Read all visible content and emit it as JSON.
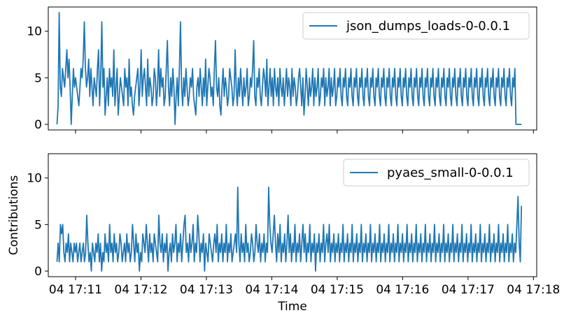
{
  "chart_data": [
    {
      "type": "line",
      "xlabel": "",
      "ylabel": "",
      "ylim": [
        -0.6,
        12.6
      ],
      "yticks": [
        0,
        5,
        10
      ],
      "xticks": [
        "17:11",
        "17:12",
        "17:13",
        "17:14",
        "17:15",
        "17:16",
        "17:17",
        "17:18"
      ],
      "legend_position": "top-right",
      "color": "#1f77b4",
      "series": [
        {
          "name": "json_dumps_loads-0-0.0.1",
          "x_start": "17:10:43",
          "x_end": "17:17:49",
          "values": [
            0,
            2,
            12,
            4,
            3,
            6,
            5,
            4,
            6,
            8,
            5,
            7,
            4,
            0,
            3,
            6,
            4,
            5,
            4,
            3,
            2,
            4,
            6,
            5,
            7,
            11,
            6,
            4,
            5,
            7,
            3,
            6,
            4,
            2,
            5,
            4,
            3,
            6,
            8,
            2,
            5,
            11,
            4,
            6,
            1,
            3,
            5,
            2,
            6,
            4,
            5,
            3,
            8,
            2,
            4,
            6,
            1,
            3,
            5,
            4,
            3,
            2,
            6,
            4,
            5,
            2,
            7,
            3,
            4,
            2,
            1,
            3,
            4,
            5,
            6,
            2,
            4,
            8,
            3,
            5,
            6,
            4,
            2,
            7,
            3,
            5,
            4,
            2,
            3,
            6,
            5,
            2,
            4,
            8,
            3,
            6,
            4,
            5,
            2,
            3,
            6,
            9,
            4,
            2,
            5,
            3,
            6,
            4,
            0,
            3,
            5,
            2,
            6,
            11,
            4,
            2,
            5,
            3,
            6,
            4,
            2,
            3,
            5,
            4,
            6,
            3,
            2,
            1,
            4,
            5,
            3,
            6,
            4,
            2,
            5,
            3,
            7,
            2,
            4,
            6,
            5,
            3,
            4,
            2,
            6,
            9,
            4,
            3,
            5,
            2,
            1,
            4,
            6,
            3,
            5,
            4,
            2,
            3,
            6,
            5,
            4,
            2,
            3,
            8,
            4,
            2,
            5,
            3,
            6,
            4,
            2,
            5,
            3,
            4,
            6,
            2,
            3,
            5,
            4,
            6,
            9,
            3,
            2,
            5,
            4,
            6,
            3,
            2,
            4,
            6,
            5,
            3,
            7,
            2,
            4,
            6,
            3,
            5,
            2,
            6,
            4,
            3,
            5,
            2,
            6,
            4,
            3,
            5,
            2,
            4,
            6,
            3,
            5,
            4,
            2,
            6,
            3,
            5,
            4,
            2,
            3,
            5,
            6,
            4,
            2,
            5,
            1,
            3,
            6,
            4,
            2,
            5,
            3,
            4,
            6,
            2,
            5,
            3,
            4,
            6,
            2,
            3,
            5,
            4,
            6,
            2,
            5,
            3,
            4,
            6,
            2,
            5,
            3,
            4,
            6,
            2,
            3,
            5,
            4,
            6,
            3,
            2,
            5,
            4,
            6,
            3,
            2,
            5,
            4,
            6,
            3,
            2,
            5,
            4,
            6,
            3,
            2,
            5,
            4,
            6,
            3,
            2,
            5,
            4,
            6,
            3,
            2,
            5,
            4,
            6,
            3,
            2,
            5,
            4,
            6,
            3,
            2,
            5,
            4,
            6,
            3,
            2,
            5,
            4,
            6,
            3,
            2,
            5,
            4,
            6,
            3,
            2,
            5,
            4,
            6,
            3,
            2,
            5,
            4,
            6,
            3,
            2,
            5,
            4,
            6,
            3,
            2,
            5,
            4,
            6,
            3,
            2,
            5,
            4,
            6,
            3,
            2,
            5,
            4,
            6,
            3,
            2,
            5,
            4,
            6,
            3,
            2,
            5,
            4,
            6,
            3,
            2,
            5,
            4,
            6,
            3,
            2,
            5,
            4,
            6,
            3,
            2,
            5,
            4,
            6,
            3,
            2,
            5,
            4,
            6,
            3,
            2,
            5,
            4,
            6,
            3,
            2,
            5,
            4,
            6,
            3,
            2,
            5,
            4,
            6,
            3,
            2,
            5,
            4,
            6,
            3,
            2,
            5,
            4,
            6,
            3,
            2,
            5,
            4,
            6,
            3,
            2,
            5,
            4,
            6,
            3,
            2,
            5,
            4,
            6,
            3,
            2,
            5,
            4,
            6,
            3,
            2,
            5,
            4,
            6,
            0,
            0,
            0,
            0,
            0,
            0
          ]
        }
      ]
    },
    {
      "type": "line",
      "xlabel": "Time",
      "ylabel": "Contributions",
      "ylim": [
        -0.6,
        12.6
      ],
      "yticks": [
        0,
        5,
        10
      ],
      "xticks": [
        "04 17:11",
        "04 17:12",
        "04 17:13",
        "04 17:14",
        "04 17:15",
        "04 17:16",
        "04 17:17",
        "04 17:18"
      ],
      "legend_position": "top-right",
      "color": "#1f77b4",
      "series": [
        {
          "name": "pyaes_small-0-0.0.1",
          "x_start": "17:10:43",
          "x_end": "17:17:49",
          "values": [
            1,
            3,
            1,
            5,
            4,
            5,
            2,
            1,
            3,
            2,
            4,
            1,
            3,
            2,
            1,
            3,
            2,
            3,
            1,
            2,
            3,
            1,
            2,
            3,
            1,
            2,
            6,
            3,
            1,
            2,
            0,
            3,
            2,
            1,
            3,
            2,
            4,
            1,
            3,
            0,
            2,
            1,
            4,
            2,
            3,
            1,
            5,
            2,
            3,
            1,
            4,
            2,
            3,
            1,
            2,
            4,
            3,
            1,
            2,
            3,
            1,
            4,
            2,
            3,
            1,
            2,
            5,
            3,
            1,
            4,
            2,
            3,
            0,
            2,
            1,
            4,
            3,
            2,
            5,
            3,
            1,
            4,
            2,
            3,
            1,
            4,
            3,
            2,
            1,
            6,
            3,
            2,
            4,
            1,
            3,
            2,
            4,
            0,
            2,
            3,
            1,
            4,
            2,
            3,
            5,
            1,
            3,
            2,
            4,
            1,
            3,
            5,
            6,
            2,
            3,
            1,
            4,
            2,
            3,
            5,
            1,
            3,
            2,
            6,
            4,
            1,
            3,
            2,
            4,
            0,
            3,
            2,
            1,
            4,
            3,
            2,
            1,
            3,
            4,
            2,
            5,
            1,
            3,
            2,
            4,
            1,
            3,
            2,
            5,
            1,
            3,
            2,
            4,
            1,
            2,
            3,
            4,
            2,
            9,
            3,
            1,
            4,
            2,
            3,
            1,
            5,
            2,
            3,
            1,
            2,
            4,
            3,
            1,
            2,
            5,
            3,
            2,
            4,
            1,
            3,
            2,
            4,
            1,
            3,
            2,
            9,
            5,
            3,
            2,
            4,
            6,
            3,
            1,
            4,
            2,
            5,
            1,
            3,
            2,
            4,
            1,
            3,
            6,
            2,
            4,
            1,
            3,
            2,
            5,
            1,
            3,
            2,
            4,
            1,
            3,
            5,
            2,
            4,
            1,
            3,
            2,
            5,
            1,
            3,
            2,
            4,
            0,
            3,
            2,
            4,
            1,
            3,
            2,
            5,
            1,
            3,
            4,
            2,
            5,
            1,
            3,
            2,
            4,
            1,
            3,
            2,
            4,
            1,
            3,
            2,
            5,
            1,
            3,
            2,
            4,
            1,
            3,
            2,
            5,
            1,
            3,
            2,
            4,
            1,
            3,
            2,
            5,
            1,
            3,
            2,
            4,
            1,
            3,
            2,
            5,
            1,
            3,
            2,
            4,
            1,
            3,
            2,
            5,
            1,
            3,
            2,
            4,
            1,
            3,
            2,
            5,
            1,
            3,
            2,
            4,
            1,
            3,
            2,
            5,
            1,
            3,
            2,
            4,
            1,
            3,
            2,
            5,
            1,
            3,
            2,
            4,
            1,
            3,
            2,
            5,
            1,
            3,
            2,
            4,
            1,
            3,
            2,
            5,
            1,
            3,
            2,
            4,
            1,
            3,
            2,
            5,
            1,
            3,
            2,
            4,
            1,
            3,
            2,
            5,
            1,
            3,
            2,
            4,
            1,
            3,
            2,
            5,
            1,
            3,
            2,
            4,
            1,
            3,
            2,
            5,
            1,
            3,
            2,
            4,
            1,
            3,
            2,
            5,
            1,
            3,
            2,
            4,
            1,
            3,
            2,
            5,
            1,
            3,
            2,
            4,
            1,
            3,
            2,
            5,
            1,
            3,
            2,
            4,
            1,
            3,
            2,
            5,
            1,
            3,
            2,
            4,
            1,
            3,
            2,
            5,
            1,
            3,
            2,
            4,
            1,
            3,
            2,
            5,
            8,
            3,
            1,
            7
          ]
        }
      ]
    }
  ]
}
